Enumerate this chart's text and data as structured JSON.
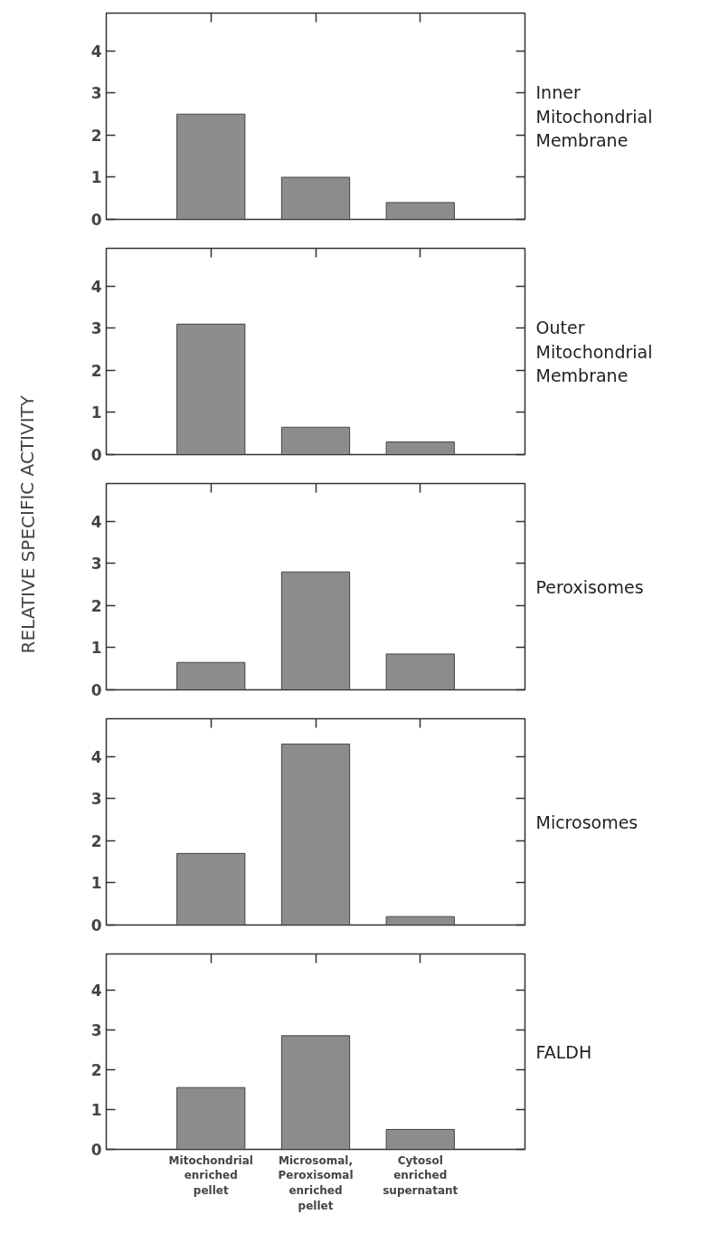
{
  "chart_data": [
    {
      "type": "bar",
      "annotations": [
        "Inner\nMitochondrial\nMembrane"
      ],
      "categories": [
        null,
        null,
        null
      ],
      "values": [
        2.5,
        1.0,
        0.4
      ],
      "color": "#8c8c8c",
      "ylim": [
        0,
        4.9
      ],
      "yticks": [
        0,
        1,
        2,
        3,
        4
      ],
      "tick_labels": "y"
    },
    {
      "type": "bar",
      "annotations": [
        "Outer\nMitochondrial\nMembrane"
      ],
      "categories": [
        null,
        null,
        null
      ],
      "values": [
        3.1,
        0.65,
        0.3
      ],
      "color": "#8c8c8c",
      "ylim": [
        0,
        4.9
      ],
      "yticks": [
        0,
        1,
        2,
        3,
        4
      ],
      "tick_labels": "y"
    },
    {
      "type": "bar",
      "annotations": [
        "Peroxisomes"
      ],
      "ylabel": "RELATIVE SPECIFIC ACTIVITY",
      "categories": [
        null,
        null,
        null
      ],
      "values": [
        0.65,
        2.8,
        0.85
      ],
      "color": "#8c8c8c",
      "ylim": [
        0,
        4.9
      ],
      "yticks": [
        0,
        1,
        2,
        3,
        4
      ],
      "tick_labels": "y"
    },
    {
      "type": "bar",
      "annotations": [
        "Microsomes"
      ],
      "categories": [
        null,
        null,
        null
      ],
      "values": [
        1.7,
        4.3,
        0.2
      ],
      "color": "#8c8c8c",
      "ylim": [
        0,
        4.9
      ],
      "yticks": [
        0,
        1,
        2,
        3,
        4
      ],
      "tick_labels": "y"
    },
    {
      "type": "bar",
      "annotations": [
        "FALDH"
      ],
      "categories": [
        "Mitochondrial\nenriched\npellet",
        "Microsomal,\nPeroxisomal\nenriched\npellet",
        "Cytosol\nenriched\nsupernatant"
      ],
      "values": [
        1.55,
        2.85,
        0.5
      ],
      "color": "#8c8c8c",
      "ylim": [
        0,
        4.9
      ],
      "yticks": [
        0,
        1,
        2,
        3,
        4
      ]
    }
  ]
}
